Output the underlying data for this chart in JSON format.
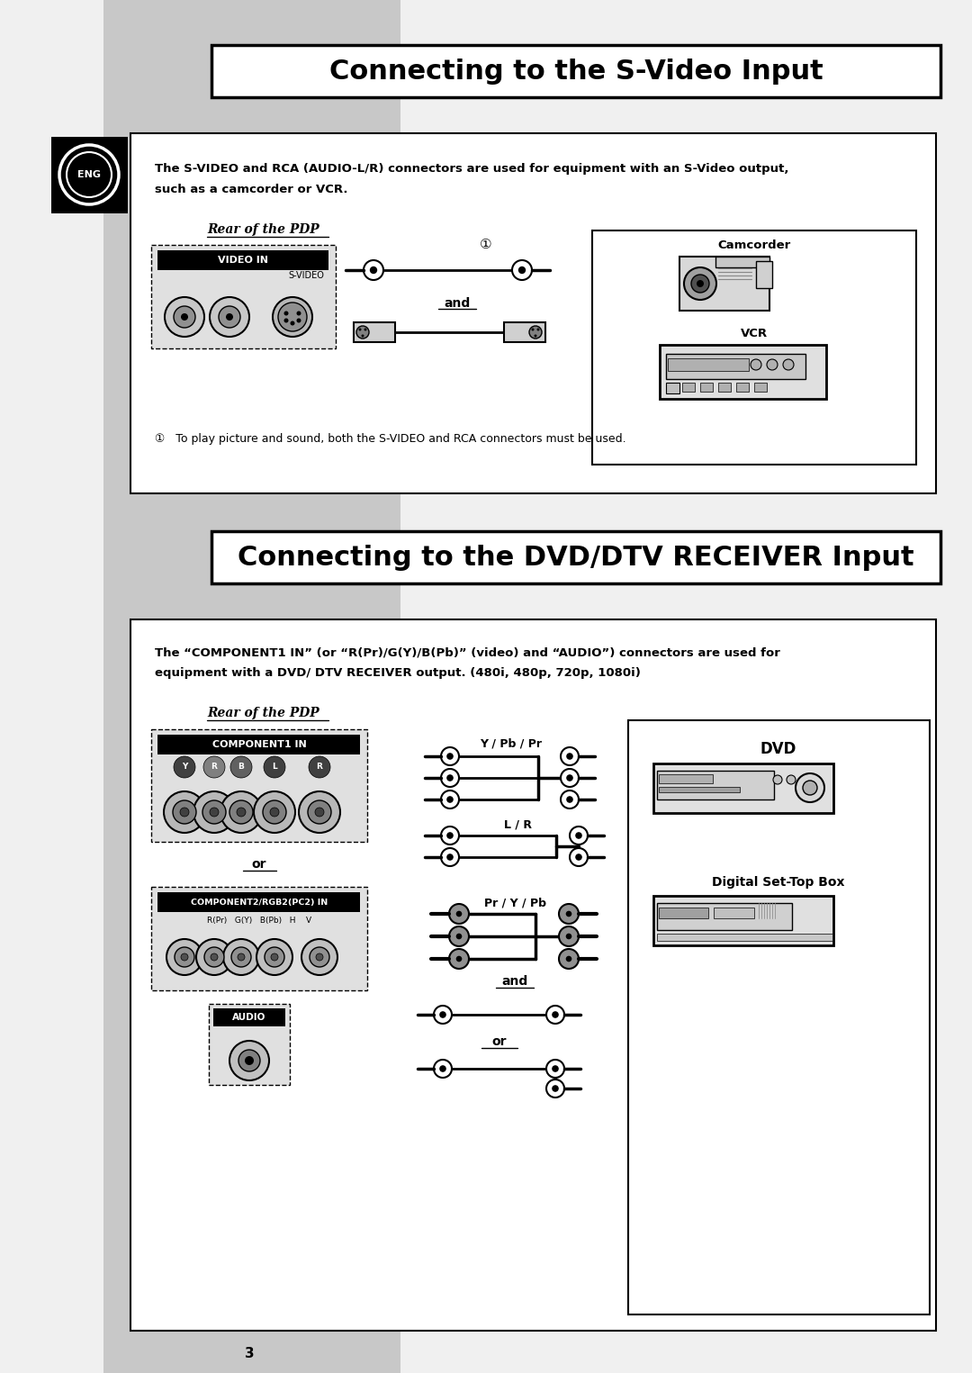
{
  "bg_color": "#f0f0f0",
  "white": "#ffffff",
  "black": "#000000",
  "gray_light": "#c8c8c8",
  "gray_mid": "#a0a0a0",
  "gray_dark": "#606060",
  "title1": "Connecting to the S-Video Input",
  "title2": "Connecting to the DVD/DTV RECEIVER Input",
  "s1_text1": "The S-VIDEO and RCA (AUDIO-L/R) connectors are used for equipment with an S-Video output,",
  "s1_text2": "such as a camcorder or VCR.",
  "s2_text1": "The “COMPONENT1 IN” (or “R(Pr)/G(Y)/B(Pb)” (video) and “AUDIO”) connectors are used for",
  "s2_text2": "equipment with a DVD/ DTV RECEIVER output. (480i, 480p, 720p, 1080i)",
  "rear_pdp": "Rear of the PDP",
  "note1": "①   To play picture and sound, both the S-VIDEO and RCA connectors must be used.",
  "and1": "and",
  "and2": "and",
  "or1": "or",
  "or2": "or",
  "camcorder": "Camcorder",
  "vcr": "VCR",
  "dvd": "DVD",
  "digital": "Digital Set-Top Box",
  "y_pb_pr": "Y / Pb / Pr",
  "l_r": "L / R",
  "pr_y_pb": "Pr / Y / Pb",
  "eng": "ENG",
  "page_num": "3",
  "video_in": "VIDEO IN",
  "svideo": "S-VIDEO",
  "comp1_in": "COMPONENT1 IN",
  "comp2_in": "COMPONENT2/RGB2(PC2) IN",
  "comp2_sub": "R(Pr)   G(Y)   B(Pb)   H    V",
  "audio": "AUDIO",
  "circle1": "①"
}
